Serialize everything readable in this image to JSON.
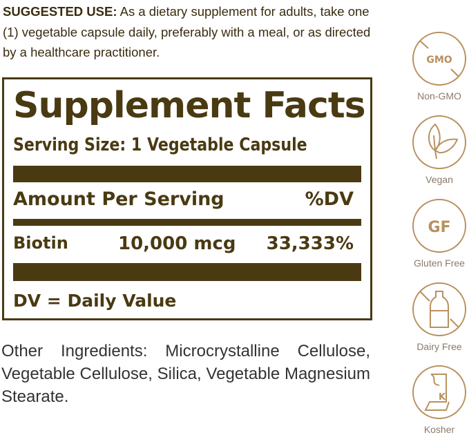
{
  "suggested_use": {
    "heading": "SUGGESTED USE:",
    "text": " As a dietary supplement for adults, take one (1) vegetable capsule daily, preferably with a meal, or as directed by a healthcare practitioner."
  },
  "facts": {
    "title": "Supplement Facts",
    "serving_size": "Serving Size: 1 Vegetable Capsule",
    "header_amount": "Amount Per Serving",
    "header_dv": "%DV",
    "nutrient": {
      "name": "Biotin",
      "amount": "10,000 mcg",
      "dv": "33,333%"
    },
    "footnote": "DV = Daily Value"
  },
  "other_ingredients": "Other Ingredients: Microcrystalline Cellulose, Vegetable Cellulose, Silica, Vegetable Magnesium Stearate.",
  "badges": [
    {
      "icon": "non-gmo-icon",
      "glyph": "GMO",
      "label": "Non-GMO"
    },
    {
      "icon": "leaf-icon",
      "label": "Vegan"
    },
    {
      "icon": "gluten-free-icon",
      "glyph": "GF",
      "label": "Gluten Free"
    },
    {
      "icon": "milk-bottle-icon",
      "label": "Dairy Free"
    },
    {
      "icon": "kosher-icon",
      "glyph": "K",
      "label": "Kosher"
    }
  ],
  "colors": {
    "label_brown": "#4a3a12",
    "badge_gold": "#b8915f"
  }
}
